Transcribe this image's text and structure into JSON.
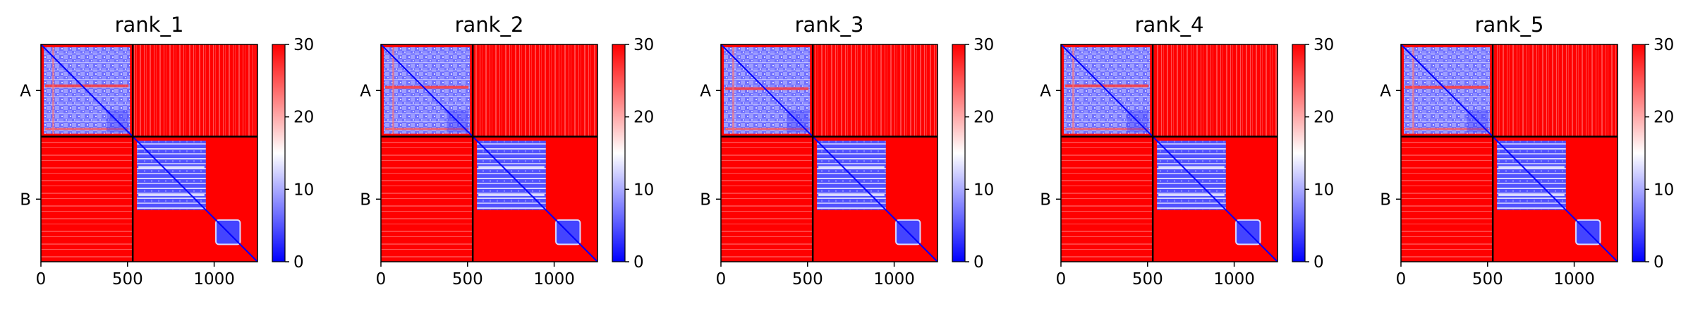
{
  "chart_data": {
    "type": "heatmap",
    "colormap": {
      "low": "#0000ff",
      "mid": "#ffffff",
      "high": "#ff0000"
    },
    "shared": {
      "x_ticks": [
        "0",
        "500",
        "1000"
      ],
      "x_tick_values": [
        0,
        500,
        1000
      ],
      "x_range": [
        0,
        1250
      ],
      "y_range": [
        0,
        1250
      ],
      "chain_labels": [
        "A",
        "B"
      ],
      "chain_boundary": 530,
      "chain_b_subblock_end": 960,
      "colorbar_ticks": [
        "0",
        "10",
        "20",
        "30"
      ],
      "colorbar_tick_values": [
        0,
        10,
        20,
        30
      ],
      "colorbar_range": [
        0,
        30
      ],
      "grid": false
    },
    "panels": [
      {
        "title": "rank_1"
      },
      {
        "title": "rank_2"
      },
      {
        "title": "rank_3"
      },
      {
        "title": "rank_4"
      },
      {
        "title": "rank_5"
      }
    ]
  }
}
